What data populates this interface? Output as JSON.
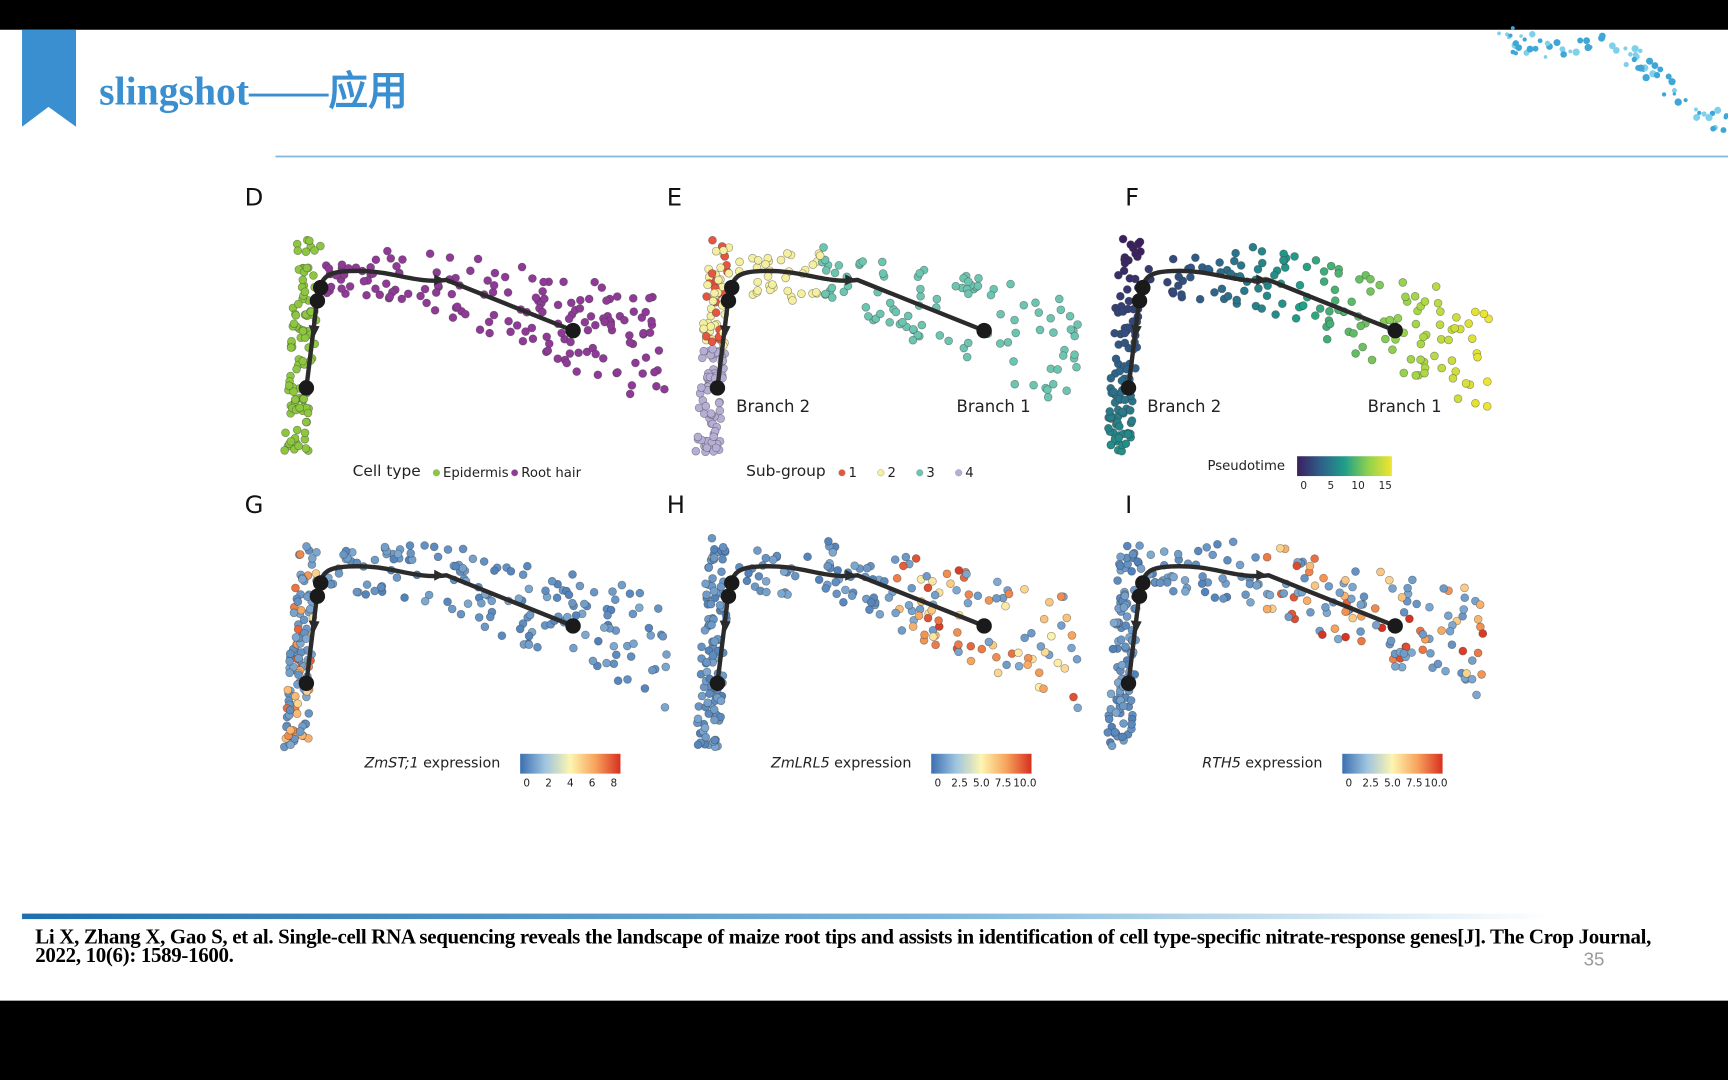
{
  "header": {
    "title": "slingshot——应用"
  },
  "figure": {
    "panels": [
      {
        "letter": "D",
        "legend": {
          "title": "Cell type",
          "items": [
            {
              "label": "Epidermis",
              "color": "#8dc63f"
            },
            {
              "label": "Root hair",
              "color": "#8e3a96"
            }
          ]
        }
      },
      {
        "letter": "E",
        "branches": [
          "Branch 2",
          "Branch 1"
        ],
        "legend": {
          "title": "Sub-group",
          "items": [
            {
              "label": "1",
              "color": "#e8553f"
            },
            {
              "label": "2",
              "color": "#f5f0a0"
            },
            {
              "label": "3",
              "color": "#6cc5b0"
            },
            {
              "label": "4",
              "color": "#b7aed6"
            }
          ]
        }
      },
      {
        "letter": "F",
        "branches": [
          "Branch 2",
          "Branch 1"
        ],
        "colorbar": {
          "title": "Pseudotime",
          "ticks": [
            "0",
            "5",
            "10",
            "15"
          ],
          "colors": [
            "#3b1f5e",
            "#2f5f8a",
            "#1f9e89",
            "#8fd14f",
            "#f0e530"
          ]
        }
      },
      {
        "letter": "G",
        "colorbar": {
          "gene": "ZmST;1",
          "title": "expression",
          "ticks": [
            "0",
            "2",
            "4",
            "6",
            "8"
          ],
          "colors": [
            "#3b6fb0",
            "#9fc5e0",
            "#fdf5b0",
            "#f7a35c",
            "#d7301f"
          ]
        }
      },
      {
        "letter": "H",
        "colorbar": {
          "gene": "ZmLRL5",
          "title": "expression",
          "ticks": [
            "0",
            "2.5",
            "5.0",
            "7.5",
            "10.0"
          ],
          "colors": [
            "#3b6fb0",
            "#9fc5e0",
            "#fdf5b0",
            "#f7a35c",
            "#d7301f"
          ]
        }
      },
      {
        "letter": "I",
        "colorbar": {
          "gene": "RTH5",
          "title": "expression",
          "ticks": [
            "0",
            "2.5",
            "5.0",
            "7.5",
            "10.0"
          ],
          "colors": [
            "#3b6fb0",
            "#9fc5e0",
            "#fdf5b0",
            "#f7a35c",
            "#d7301f"
          ]
        }
      }
    ]
  },
  "citation": "Li X, Zhang X, Gao S, et al. Single-cell RNA sequencing reveals the landscape of maize root tips and assists in identification of cell type-specific nitrate-response genes[J]. The Crop Journal, 2022, 10(6): 1589-1600.",
  "page_number": "35"
}
